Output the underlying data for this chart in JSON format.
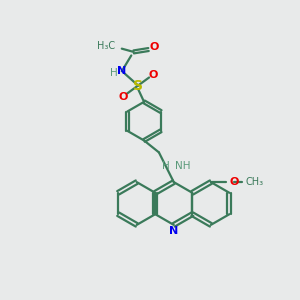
{
  "bg_color": "#e8eaea",
  "bond_color": "#3a7a5a",
  "N_color": "#0000ee",
  "O_color": "#ee0000",
  "S_color": "#bbbb00",
  "NH_color": "#5a9a7a",
  "line_width": 1.6,
  "figsize": [
    3.0,
    3.0
  ],
  "dpi": 100,
  "xlim": [
    0,
    10
  ],
  "ylim": [
    0,
    10
  ]
}
